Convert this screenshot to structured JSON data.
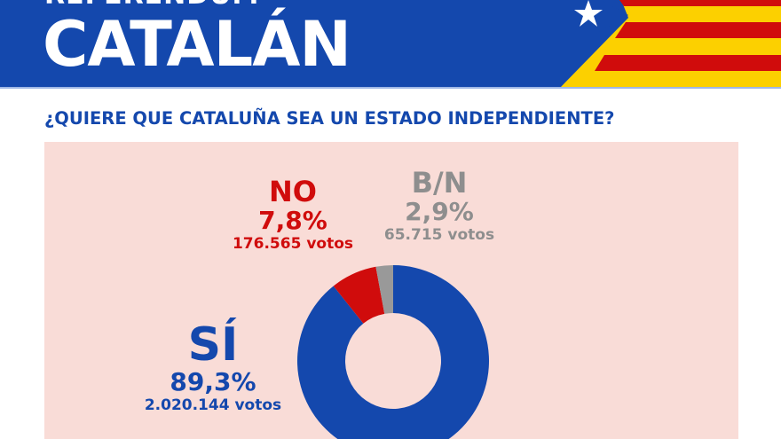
{
  "header": {
    "kicker": "REFERÉNDUM",
    "title": "CATALÁN"
  },
  "question": "¿QUIERE QUE CATALUÑA SEA UN ESTADO INDEPENDIENTE?",
  "colors": {
    "blue": "#1448ad",
    "red": "#d00c0c",
    "gray": "#999999",
    "yellow": "#fcd000",
    "panel": "#f9dcd7"
  },
  "chart_data": {
    "type": "pie",
    "subtype": "donut",
    "title": "¿QUIERE QUE CATALUÑA SEA UN ESTADO INDEPENDIENTE?",
    "slices": [
      {
        "name": "SÍ",
        "percent_label": "89,3%",
        "value": 89.3,
        "votes_label": "2.020.144 votos",
        "votes": 2020144,
        "color": "#1448ad"
      },
      {
        "name": "NO",
        "percent_label": "7,8%",
        "value": 7.8,
        "votes_label": "176.565 votos",
        "votes": 176565,
        "color": "#d00c0c"
      },
      {
        "name": "B/N",
        "percent_label": "2,9%",
        "value": 2.9,
        "votes_label": "65.715 votos",
        "votes": 65715,
        "color": "#999999"
      }
    ]
  }
}
